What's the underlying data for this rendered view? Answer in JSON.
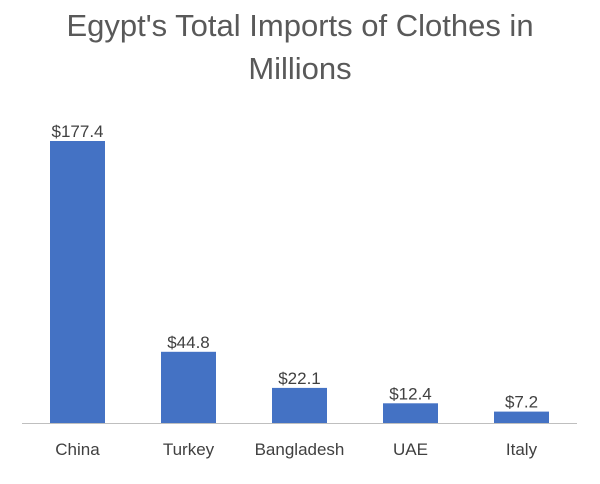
{
  "chart_data": {
    "type": "bar",
    "title_lines": [
      "Egypt's Total Imports of Clothes in",
      "Millions"
    ],
    "title": "Egypt's Total Imports of Clothes in Millions",
    "xlabel": "",
    "ylabel": "",
    "categories": [
      "China",
      "Turkey",
      "Bangladesh",
      "UAE",
      "Italy"
    ],
    "values": [
      177.4,
      44.8,
      22.1,
      12.4,
      7.2
    ],
    "data_labels": [
      "$177.4",
      "$44.8",
      "$22.1",
      "$12.4",
      "$7.2"
    ],
    "ylim": [
      0,
      177.4
    ],
    "grid": false,
    "legend": "none",
    "colors": {
      "bar": "#4472C4",
      "axis": "#BFBFBF",
      "text": "#404040",
      "title": "#595959"
    }
  }
}
